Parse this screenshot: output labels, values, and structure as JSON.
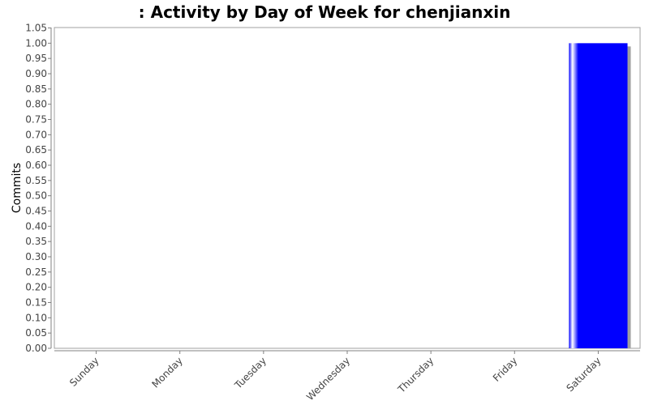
{
  "chart_data": {
    "type": "bar",
    "title": ": Activity by Day of Week for chenjianxin",
    "xlabel": "",
    "ylabel": "Commits",
    "categories": [
      "Sunday",
      "Monday",
      "Tuesday",
      "Wednesday",
      "Thursday",
      "Friday",
      "Saturday"
    ],
    "values": [
      0,
      0,
      0,
      0,
      0,
      0,
      1.0
    ],
    "ylim": [
      0,
      1.05
    ],
    "yticks": [
      "0.00",
      "0.05",
      "0.10",
      "0.15",
      "0.20",
      "0.25",
      "0.30",
      "0.35",
      "0.40",
      "0.45",
      "0.50",
      "0.55",
      "0.60",
      "0.65",
      "0.70",
      "0.75",
      "0.80",
      "0.85",
      "0.90",
      "0.95",
      "1.00",
      "1.05"
    ],
    "grid": false,
    "legend": "none",
    "colors": {
      "bar": "#0000ff",
      "bar_highlight": "#ffffff",
      "shadow": "#a0a0a0",
      "axis": "#808080"
    }
  }
}
